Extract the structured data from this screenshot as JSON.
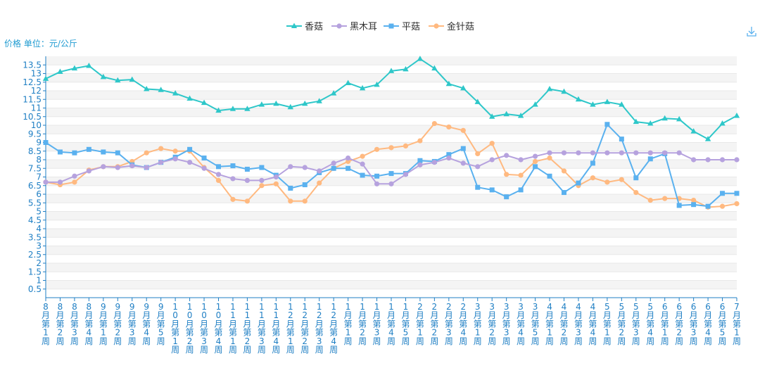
{
  "chart_data": {
    "type": "line",
    "ylabel": "价格 单位：元/公斤",
    "ylim": [
      0,
      14
    ],
    "yticks": [
      0.5,
      1,
      1.5,
      2,
      2.5,
      3,
      3.5,
      4,
      4.5,
      5,
      5.5,
      6,
      6.5,
      7,
      7.5,
      8,
      8.5,
      9,
      9.5,
      10,
      10.5,
      11,
      11.5,
      12,
      12.5,
      13,
      13.5
    ],
    "grid": true,
    "legend_position": "top-center",
    "categories": [
      "8月第1周",
      "8月第2周",
      "8月第3周",
      "8月第4周",
      "9月第1周",
      "9月第2周",
      "9月第3周",
      "9月第4周",
      "9月第5周",
      "10月第1周",
      "10月第2周",
      "10月第3周",
      "10月第4周",
      "11月第1周",
      "11月第2周",
      "11月第3周",
      "11月第4周",
      "12月第1周",
      "12月第2周",
      "12月第3周",
      "12月第4周",
      "1月第1周",
      "1月第2周",
      "1月第3周",
      "1月第4周",
      "1月第5周",
      "2月第1周",
      "2月第2周",
      "2月第3周",
      "2月第4周",
      "3月第1周",
      "3月第2周",
      "3月第3周",
      "3月第4周",
      "3月第5周",
      "4月第1周",
      "4月第2周",
      "4月第3周",
      "4月第4周",
      "5月第1周",
      "5月第2周",
      "5月第3周",
      "5月第4周",
      "6月第1周",
      "6月第2周",
      "6月第3周",
      "6月第4周",
      "6月第5周",
      "7月第1周"
    ],
    "series": [
      {
        "name": "香菇",
        "color": "#2ec7c9",
        "marker": "triangle",
        "values": [
          12.7,
          13.1,
          13.3,
          13.45,
          12.8,
          12.6,
          12.65,
          12.1,
          12.05,
          11.85,
          11.55,
          11.3,
          10.85,
          10.95,
          10.95,
          11.2,
          11.25,
          11.05,
          11.25,
          11.4,
          11.85,
          12.45,
          12.15,
          12.35,
          13.15,
          13.25,
          13.85,
          13.3,
          12.4,
          12.15,
          11.35,
          10.5,
          10.65,
          10.55,
          11.2,
          12.1,
          11.95,
          11.5,
          11.2,
          11.35,
          11.2,
          10.2,
          10.1,
          10.4,
          10.35,
          9.65,
          9.2,
          10.1,
          10.55
        ]
      },
      {
        "name": "黑木耳",
        "color": "#b6a2de",
        "marker": "circle",
        "values": [
          6.7,
          6.7,
          7.05,
          7.35,
          7.6,
          7.55,
          7.65,
          7.55,
          7.85,
          8.05,
          7.85,
          7.5,
          7.15,
          6.9,
          6.8,
          6.8,
          7.0,
          7.6,
          7.55,
          7.35,
          7.8,
          8.1,
          7.75,
          6.6,
          6.6,
          7.15,
          7.7,
          7.85,
          8.1,
          7.8,
          7.6,
          8.0,
          8.25,
          8.0,
          8.2,
          8.4,
          8.4,
          8.4,
          8.4,
          8.4,
          8.4,
          8.4,
          8.4,
          8.4,
          8.4,
          8.0,
          8.0,
          8.0,
          8.0
        ]
      },
      {
        "name": "平菇",
        "color": "#5ab1ef",
        "marker": "square",
        "values": [
          9.0,
          8.45,
          8.4,
          8.6,
          8.45,
          8.4,
          7.7,
          7.55,
          7.85,
          8.15,
          8.6,
          8.1,
          7.6,
          7.65,
          7.45,
          7.55,
          7.1,
          6.35,
          6.55,
          7.25,
          7.5,
          7.5,
          7.1,
          7.05,
          7.2,
          7.2,
          7.95,
          7.9,
          8.3,
          8.65,
          6.4,
          6.25,
          5.85,
          6.25,
          7.6,
          7.05,
          6.1,
          6.65,
          7.8,
          10.05,
          9.2,
          6.95,
          8.05,
          8.35,
          5.35,
          5.4,
          5.3,
          6.05,
          6.05
        ]
      },
      {
        "name": "金针菇",
        "color": "#ffb980",
        "marker": "circle",
        "values": [
          6.7,
          6.55,
          6.7,
          7.4,
          7.6,
          7.6,
          7.9,
          8.4,
          8.65,
          8.5,
          8.5,
          7.55,
          6.8,
          5.7,
          5.6,
          6.5,
          6.6,
          5.6,
          5.6,
          6.65,
          7.5,
          7.9,
          8.2,
          8.6,
          8.7,
          8.8,
          9.1,
          10.1,
          9.9,
          9.7,
          8.35,
          8.95,
          7.15,
          7.1,
          7.9,
          8.1,
          7.35,
          6.5,
          6.95,
          6.7,
          6.85,
          6.1,
          5.65,
          5.75,
          5.75,
          5.65,
          5.25,
          5.3,
          5.45
        ]
      }
    ]
  }
}
